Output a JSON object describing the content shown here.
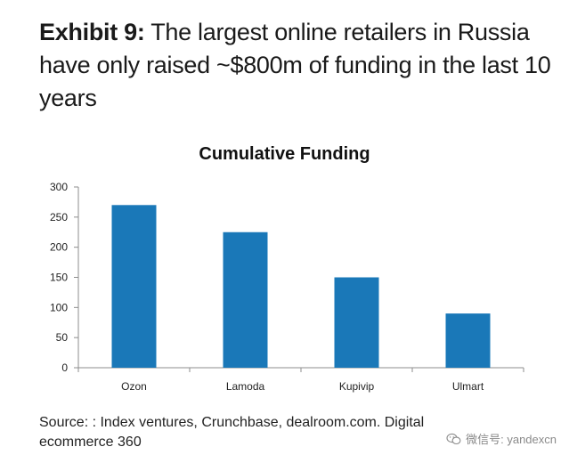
{
  "header": {
    "exhibit_label": "Exhibit 9:",
    "title": "The largest online retailers in Russia have only raised ~$800m of funding in the last 10 years"
  },
  "chart_data": {
    "type": "bar",
    "title": "Cumulative Funding",
    "categories": [
      "Ozon",
      "Lamoda",
      "Kupivip",
      "Ulmart"
    ],
    "values": [
      270,
      225,
      150,
      90
    ],
    "ylim": [
      0,
      300
    ],
    "yticks": [
      0,
      50,
      100,
      150,
      200,
      250,
      300
    ],
    "xlabel": "",
    "ylabel": "",
    "grid": false,
    "legend": "none",
    "bar_color": "#1a78b8"
  },
  "footer": {
    "source": "Source: : Index ventures, Crunchbase, dealroom.com. Digital ecommerce 360",
    "watermark": "微信号: yandexcn",
    "watermark_icon": "wechat-icon"
  }
}
